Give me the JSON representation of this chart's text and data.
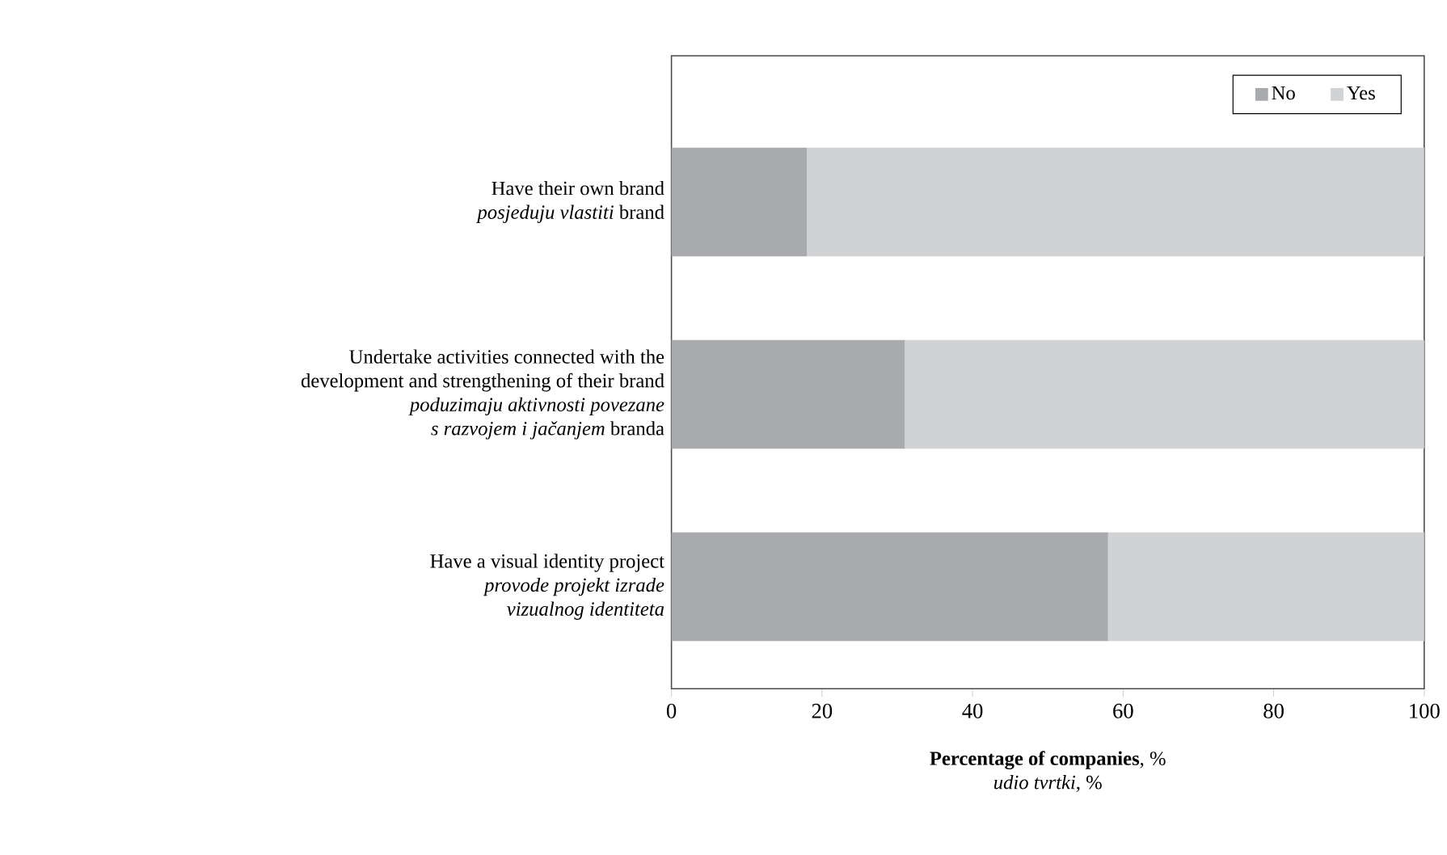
{
  "chart_data": {
    "type": "bar",
    "orientation": "horizontal",
    "stacked": true,
    "categories": [
      "Have their own brand\n*posjeduju vlastiti* brand",
      "Undertake activities connected with the\ndevelopment and strengthening of their brand\n*poduzimaju aktivnosti povezane*\n*s razvojem i jačanjem* branda",
      "Have a visual identity project\n*provode projekt izrade*\n*vizualnog identiteta*"
    ],
    "series": [
      {
        "name": "No",
        "color": "#a9aaad",
        "values": [
          18,
          31,
          58
        ]
      },
      {
        "name": "Yes",
        "color": "#d1d2d4",
        "values": [
          82,
          69,
          42
        ]
      }
    ],
    "xlabel": "**Percentage of companies**, %\n*udio tvrtki*, %",
    "xlim": [
      0,
      100
    ],
    "xticks": [
      0,
      20,
      40,
      60,
      80,
      100
    ],
    "legend": "top right",
    "grid": false
  }
}
